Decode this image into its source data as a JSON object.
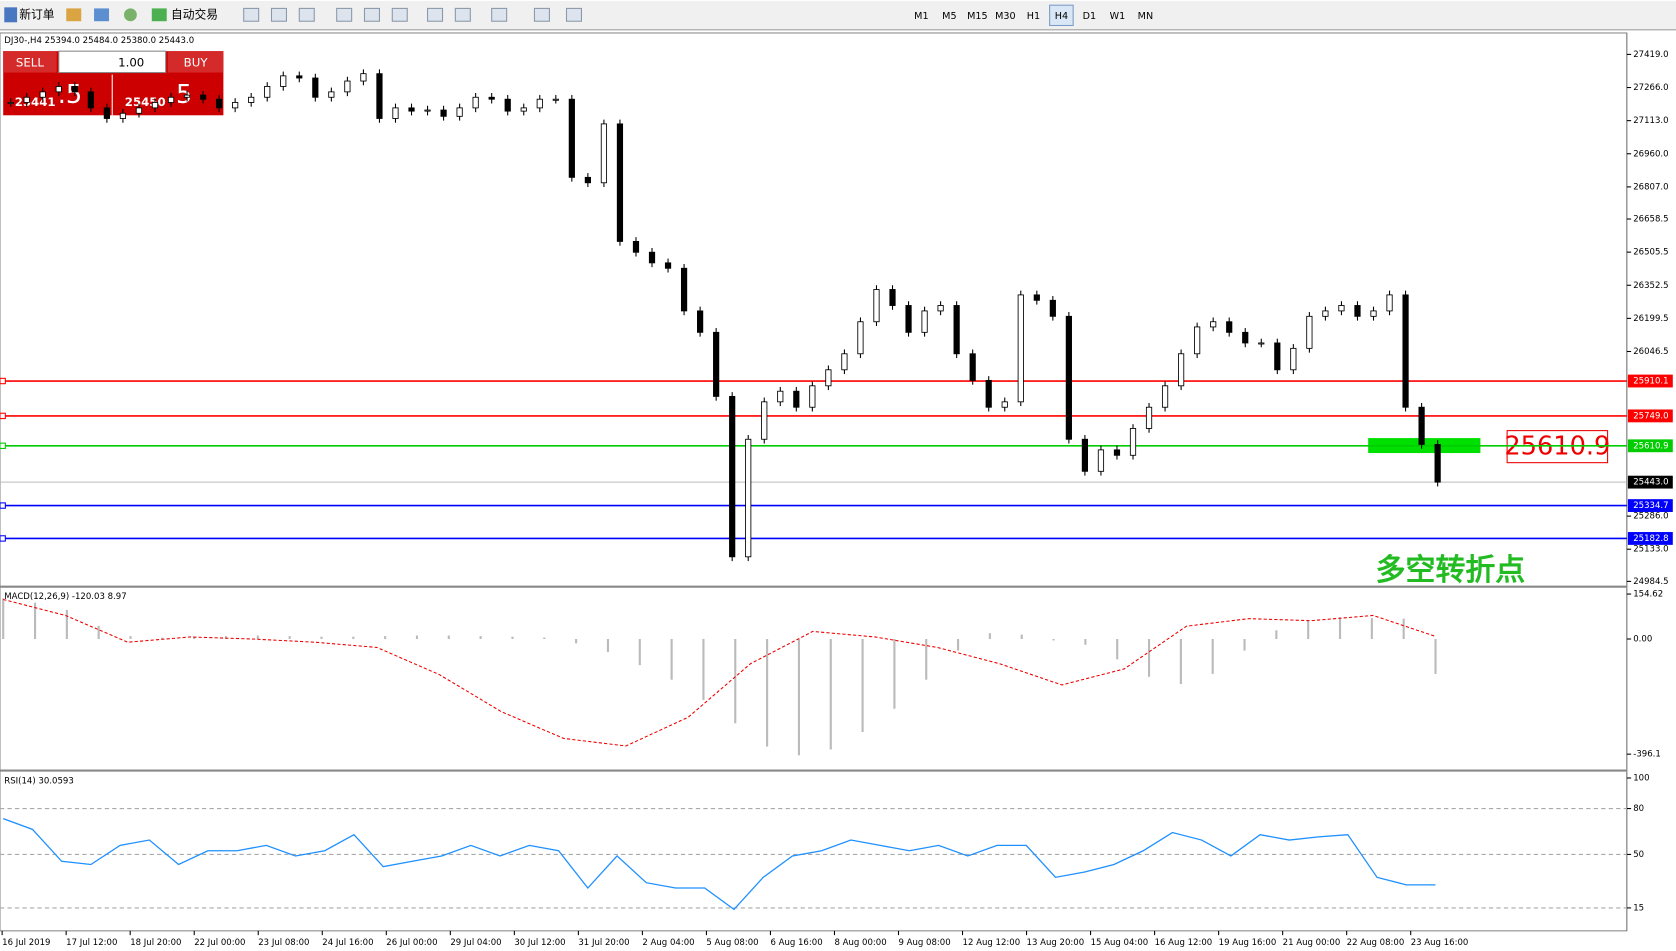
{
  "toolbar": {
    "new_order": "新订单",
    "auto_trading": "自动交易",
    "timeframes": [
      "M1",
      "M5",
      "M15",
      "M30",
      "H1",
      "H4",
      "D1",
      "W1",
      "MN"
    ],
    "active_timeframe": "H4"
  },
  "chart": {
    "symbol_info": "DJ30-,H4  25394.0 25484.0 25380.0 25443.0",
    "trade_panel": {
      "sell": "SELL",
      "buy": "BUY",
      "lots": "1.00",
      "bid_main": "25441",
      "bid_small": ".5",
      "ask_main": "25450",
      "ask_small": ".5"
    },
    "ylim": [
      24965,
      27518
    ],
    "yticks": [
      {
        "value": 27419,
        "label": "27419.0"
      },
      {
        "value": 27266,
        "label": "27266.0"
      },
      {
        "value": 27113,
        "label": "27113.0"
      },
      {
        "value": 26960,
        "label": "26960.0"
      },
      {
        "value": 26807,
        "label": "26807.0"
      },
      {
        "value": 26658.5,
        "label": "26658.5"
      },
      {
        "value": 26505.5,
        "label": "26505.5"
      },
      {
        "value": 26352.5,
        "label": "26352.5"
      },
      {
        "value": 26199.5,
        "label": "26199.5"
      },
      {
        "value": 26046.5,
        "label": "26046.5"
      },
      {
        "value": 25286,
        "label": "25286.0"
      },
      {
        "value": 25133,
        "label": "25133.0"
      },
      {
        "value": 24984.5,
        "label": "24984.5"
      }
    ],
    "closes": [
      27197,
      27221,
      27246,
      27271,
      27246,
      27172,
      27123,
      27147,
      27172,
      27197,
      27221,
      27231,
      27212,
      27172,
      27197,
      27221,
      27271,
      27320,
      27310,
      27221,
      27246,
      27296,
      27330,
      27123,
      27172,
      27157,
      27162,
      27133,
      27172,
      27221,
      27212,
      27157,
      27172,
      27212,
      27212,
      26851,
      26826,
      27098,
      26555,
      26505,
      26456,
      26431,
      26234,
      26135,
      25839,
      25098,
      25641,
      25814,
      25863,
      25789,
      25888,
      25962,
      26036,
      26184,
      26333,
      26259,
      26135,
      26234,
      26259,
      26036,
      25913,
      25789,
      25814,
      26308,
      26283,
      26209,
      25641,
      25493,
      25592,
      25567,
      25691,
      25789,
      25888,
      26036,
      26160,
      26184,
      26135,
      26086,
      26086,
      25962,
      26061,
      26209,
      26234,
      26259,
      26209,
      26234,
      26308,
      25789,
      25617,
      25443
    ],
    "levels": [
      {
        "value": 25910.1,
        "label": "25910.1",
        "color": "#ff0000"
      },
      {
        "value": 25749,
        "label": "25749.0",
        "color": "#ff0000"
      },
      {
        "value": 25610.9,
        "label": "25610.9",
        "color": "#00cc00"
      },
      {
        "value": 25334.7,
        "label": "25334.7",
        "color": "#0000ff"
      },
      {
        "value": 25182.8,
        "label": "25182.8",
        "color": "#0000ff"
      }
    ],
    "current_price": {
      "value": 25443,
      "label": "25443.0"
    },
    "annotation": "多空转折点",
    "macd": {
      "title": "MACD(12,26,9) -120.03 8.97",
      "ylim": [
        -445,
        169
      ],
      "yticks": [
        154.62,
        {
          "value": 0,
          "label": "0.00"
        },
        -396.1
      ],
      "histogram": [
        140,
        125,
        100,
        45,
        10,
        5,
        8,
        10,
        12,
        10,
        8,
        8,
        10,
        12,
        12,
        10,
        8,
        5,
        -15,
        -45,
        -90,
        -140,
        -210,
        -290,
        -370,
        -400,
        -380,
        -320,
        -240,
        -140,
        -40,
        20,
        15,
        -5,
        -20,
        -70,
        -130,
        -155,
        -120,
        -40,
        30,
        65,
        75,
        72,
        70,
        -120.03
      ],
      "signal": [
        136,
        81,
        -11,
        7,
        0,
        -11,
        -29,
        -122,
        -250,
        -342,
        -368,
        -269,
        -85,
        26,
        7,
        -29,
        -85,
        -158,
        -103,
        44,
        70,
        63,
        81,
        8.97
      ]
    },
    "rsi": {
      "title": "RSI(14) 30.0593",
      "ylim": [
        0,
        100
      ],
      "yticks": [
        100,
        80,
        50,
        15
      ],
      "levels": [
        80,
        50,
        15
      ],
      "values": [
        73.4,
        66.4,
        45.5,
        43.4,
        55.9,
        59.4,
        43.4,
        52.4,
        52.4,
        55.9,
        49,
        52.4,
        62.9,
        42,
        45.5,
        49,
        55.9,
        49,
        55.9,
        52.4,
        28,
        49,
        31.5,
        28,
        28,
        14,
        35,
        49,
        52.4,
        59.4,
        55.9,
        52.4,
        55.9,
        49,
        55.9,
        55.9,
        35,
        38.5,
        43.4,
        52.4,
        64.3,
        59.4,
        49,
        62.9,
        59.4,
        61.5,
        62.9,
        35,
        30.1,
        30.0593
      ]
    },
    "time_axis": [
      "16 Jul 2019",
      "17 Jul 12:00",
      "18 Jul 20:00",
      "22 Jul 00:00",
      "23 Jul 08:00",
      "24 Jul 16:00",
      "26 Jul 00:00",
      "29 Jul 04:00",
      "30 Jul 12:00",
      "31 Jul 20:00",
      "2 Aug 04:00",
      "5 Aug 08:00",
      "6 Aug 16:00",
      "8 Aug 00:00",
      "9 Aug 08:00",
      "12 Aug 12:00",
      "13 Aug 20:00",
      "15 Aug 04:00",
      "16 Aug 12:00",
      "19 Aug 16:00",
      "21 Aug 00:00",
      "22 Aug 08:00",
      "23 Aug 16:00"
    ]
  }
}
